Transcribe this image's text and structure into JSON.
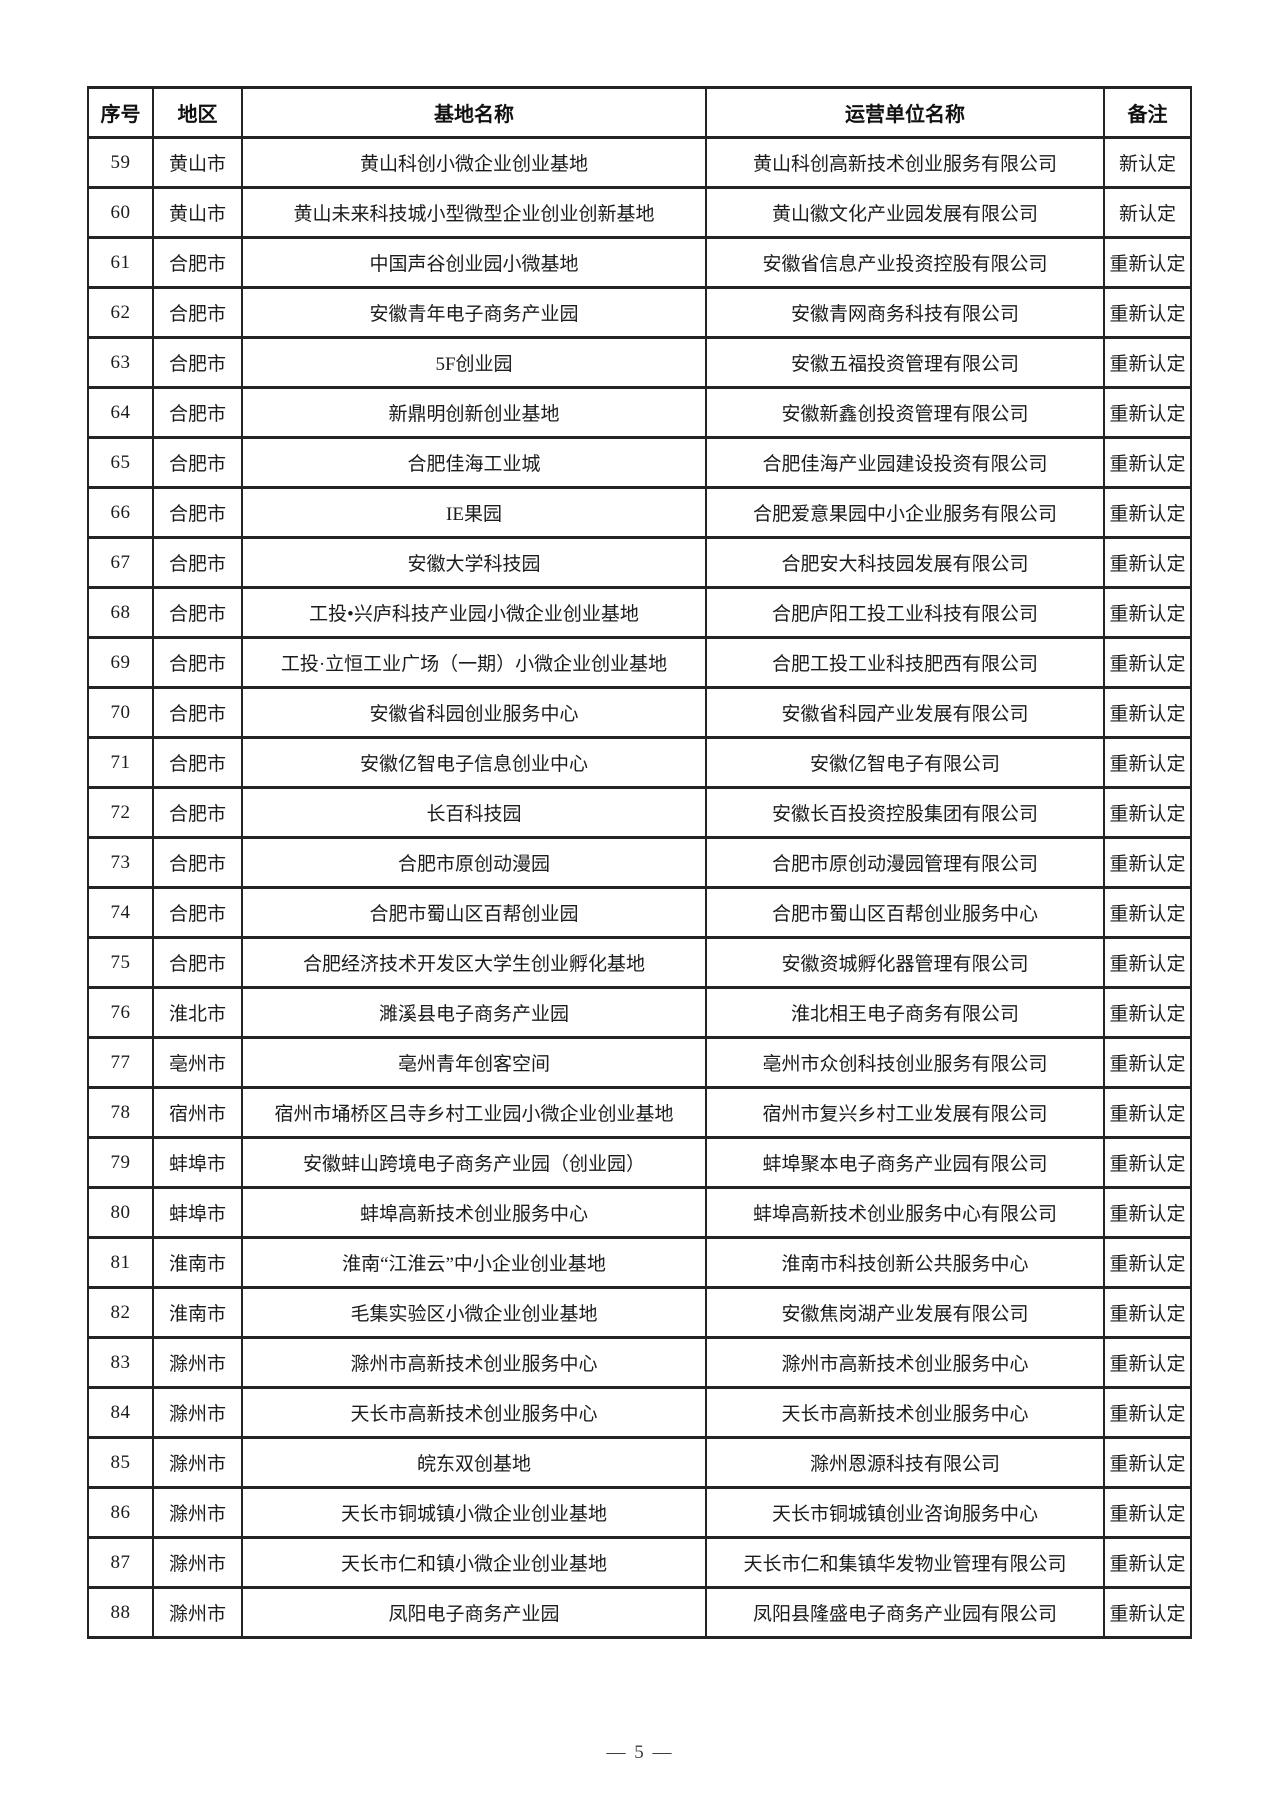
{
  "table": {
    "columns": [
      {
        "key": "no",
        "label": "序号"
      },
      {
        "key": "region",
        "label": "地区"
      },
      {
        "key": "base_name",
        "label": "基地名称"
      },
      {
        "key": "operator",
        "label": "运营单位名称"
      },
      {
        "key": "remark",
        "label": "备注"
      }
    ],
    "rows": [
      {
        "no": "59",
        "region": "黄山市",
        "base_name": "黄山科创小微企业创业基地",
        "operator": "黄山科创高新技术创业服务有限公司",
        "remark": "新认定"
      },
      {
        "no": "60",
        "region": "黄山市",
        "base_name": "黄山未来科技城小型微型企业创业创新基地",
        "operator": "黄山徽文化产业园发展有限公司",
        "remark": "新认定"
      },
      {
        "no": "61",
        "region": "合肥市",
        "base_name": "中国声谷创业园小微基地",
        "operator": "安徽省信息产业投资控股有限公司",
        "remark": "重新认定"
      },
      {
        "no": "62",
        "region": "合肥市",
        "base_name": "安徽青年电子商务产业园",
        "operator": "安徽青网商务科技有限公司",
        "remark": "重新认定"
      },
      {
        "no": "63",
        "region": "合肥市",
        "base_name": "5F创业园",
        "operator": "安徽五福投资管理有限公司",
        "remark": "重新认定"
      },
      {
        "no": "64",
        "region": "合肥市",
        "base_name": "新鼎明创新创业基地",
        "operator": "安徽新鑫创投资管理有限公司",
        "remark": "重新认定"
      },
      {
        "no": "65",
        "region": "合肥市",
        "base_name": "合肥佳海工业城",
        "operator": "合肥佳海产业园建设投资有限公司",
        "remark": "重新认定"
      },
      {
        "no": "66",
        "region": "合肥市",
        "base_name": "IE果园",
        "operator": "合肥爱意果园中小企业服务有限公司",
        "remark": "重新认定"
      },
      {
        "no": "67",
        "region": "合肥市",
        "base_name": "安徽大学科技园",
        "operator": "合肥安大科技园发展有限公司",
        "remark": "重新认定"
      },
      {
        "no": "68",
        "region": "合肥市",
        "base_name": "工投•兴庐科技产业园小微企业创业基地",
        "operator": "合肥庐阳工投工业科技有限公司",
        "remark": "重新认定"
      },
      {
        "no": "69",
        "region": "合肥市",
        "base_name": "工投·立恒工业广场（一期）小微企业创业基地",
        "operator": "合肥工投工业科技肥西有限公司",
        "remark": "重新认定"
      },
      {
        "no": "70",
        "region": "合肥市",
        "base_name": "安徽省科园创业服务中心",
        "operator": "安徽省科园产业发展有限公司",
        "remark": "重新认定"
      },
      {
        "no": "71",
        "region": "合肥市",
        "base_name": "安徽亿智电子信息创业中心",
        "operator": "安徽亿智电子有限公司",
        "remark": "重新认定"
      },
      {
        "no": "72",
        "region": "合肥市",
        "base_name": "长百科技园",
        "operator": "安徽长百投资控股集团有限公司",
        "remark": "重新认定"
      },
      {
        "no": "73",
        "region": "合肥市",
        "base_name": "合肥市原创动漫园",
        "operator": "合肥市原创动漫园管理有限公司",
        "remark": "重新认定"
      },
      {
        "no": "74",
        "region": "合肥市",
        "base_name": "合肥市蜀山区百帮创业园",
        "operator": "合肥市蜀山区百帮创业服务中心",
        "remark": "重新认定"
      },
      {
        "no": "75",
        "region": "合肥市",
        "base_name": "合肥经济技术开发区大学生创业孵化基地",
        "operator": "安徽资城孵化器管理有限公司",
        "remark": "重新认定"
      },
      {
        "no": "76",
        "region": "淮北市",
        "base_name": "濉溪县电子商务产业园",
        "operator": "淮北相王电子商务有限公司",
        "remark": "重新认定"
      },
      {
        "no": "77",
        "region": "亳州市",
        "base_name": "亳州青年创客空间",
        "operator": "亳州市众创科技创业服务有限公司",
        "remark": "重新认定"
      },
      {
        "no": "78",
        "region": "宿州市",
        "base_name": "宿州市埇桥区吕寺乡村工业园小微企业创业基地",
        "operator": "宿州市复兴乡村工业发展有限公司",
        "remark": "重新认定"
      },
      {
        "no": "79",
        "region": "蚌埠市",
        "base_name": "安徽蚌山跨境电子商务产业园（创业园）",
        "operator": "蚌埠聚本电子商务产业园有限公司",
        "remark": "重新认定"
      },
      {
        "no": "80",
        "region": "蚌埠市",
        "base_name": "蚌埠高新技术创业服务中心",
        "operator": "蚌埠高新技术创业服务中心有限公司",
        "remark": "重新认定"
      },
      {
        "no": "81",
        "region": "淮南市",
        "base_name": "淮南“江淮云”中小企业创业基地",
        "operator": "淮南市科技创新公共服务中心",
        "remark": "重新认定"
      },
      {
        "no": "82",
        "region": "淮南市",
        "base_name": "毛集实验区小微企业创业基地",
        "operator": "安徽焦岗湖产业发展有限公司",
        "remark": "重新认定"
      },
      {
        "no": "83",
        "region": "滁州市",
        "base_name": "滁州市高新技术创业服务中心",
        "operator": "滁州市高新技术创业服务中心",
        "remark": "重新认定"
      },
      {
        "no": "84",
        "region": "滁州市",
        "base_name": "天长市高新技术创业服务中心",
        "operator": "天长市高新技术创业服务中心",
        "remark": "重新认定"
      },
      {
        "no": "85",
        "region": "滁州市",
        "base_name": "皖东双创基地",
        "operator": "滁州恩源科技有限公司",
        "remark": "重新认定"
      },
      {
        "no": "86",
        "region": "滁州市",
        "base_name": "天长市铜城镇小微企业创业基地",
        "operator": "天长市铜城镇创业咨询服务中心",
        "remark": "重新认定"
      },
      {
        "no": "87",
        "region": "滁州市",
        "base_name": "天长市仁和镇小微企业创业基地",
        "operator": "天长市仁和集镇华发物业管理有限公司",
        "remark": "重新认定"
      },
      {
        "no": "88",
        "region": "滁州市",
        "base_name": "凤阳电子商务产业园",
        "operator": "凤阳县隆盛电子商务产业园有限公司",
        "remark": "重新认定"
      }
    ]
  },
  "footer": {
    "page_number_text": "— 5 —"
  },
  "colors": {
    "text": "#1c1c1c",
    "border": "#242424",
    "background": "#ffffff"
  }
}
